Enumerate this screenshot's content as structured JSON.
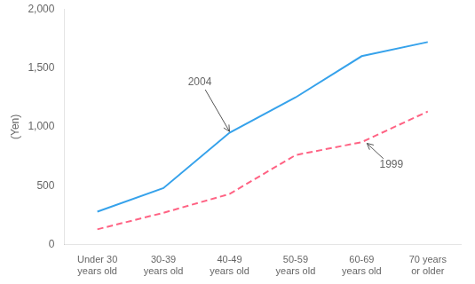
{
  "chart_data": {
    "type": "line",
    "categories": [
      "Under 30\nyears old",
      "30-39\nyears old",
      "40-49\nyears old",
      "50-59\nyears old",
      "60-69\nyears old",
      "70 years\nor older"
    ],
    "series": [
      {
        "name": "2004",
        "values": [
          280,
          480,
          950,
          1250,
          1600,
          1720
        ],
        "line_style": "solid"
      },
      {
        "name": "1999",
        "values": [
          130,
          270,
          430,
          760,
          870,
          1130
        ],
        "line_style": "dashed"
      }
    ],
    "ylabel": "(Yen)",
    "ylim": [
      0,
      2000
    ],
    "yticks": [
      0,
      500,
      {
        "value": 1000,
        "label": "1,000"
      },
      {
        "value": 1500,
        "label": "1,500"
      },
      {
        "value": 2000,
        "label": "2,000"
      }
    ],
    "grid": false,
    "annotations": [
      {
        "text": "2004",
        "x": 1.55,
        "y": 1380,
        "arrow_x": 2.0,
        "arrow_y": 960
      },
      {
        "text": "1999",
        "x": 4.45,
        "y": 680,
        "arrow_x": 4.08,
        "arrow_y": 860
      }
    ]
  }
}
